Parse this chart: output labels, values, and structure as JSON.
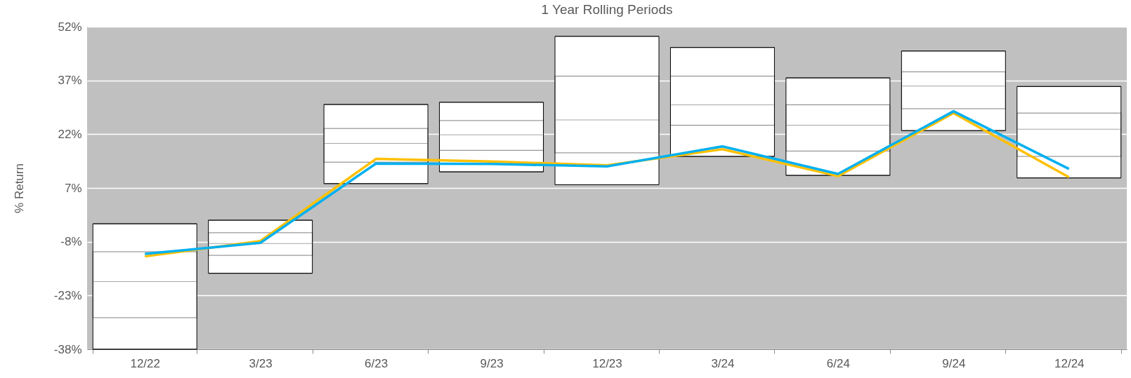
{
  "chart_data": {
    "type": "box",
    "title": "1 Year Rolling Periods",
    "ylabel": "% Return",
    "categories": [
      "12/22",
      "3/23",
      "6/23",
      "9/23",
      "12/23",
      "3/24",
      "6/24",
      "9/24",
      "12/24"
    ],
    "boxes": [
      {
        "low": -38,
        "q1": -29.2,
        "median": -19.1,
        "q3": -10.8,
        "high": -3
      },
      {
        "low": -16.8,
        "q1": -11.8,
        "median": -8.5,
        "q3": -5.5,
        "high": -2
      },
      {
        "low": 8.2,
        "q1": 14.2,
        "median": 19.4,
        "q3": 23.6,
        "high": 30.3
      },
      {
        "low": 11.5,
        "q1": 17.5,
        "median": 21.8,
        "q3": 25.8,
        "high": 30.9
      },
      {
        "low": 7.9,
        "q1": 16.8,
        "median": 26,
        "q3": 38.2,
        "high": 49.3
      },
      {
        "low": 15.8,
        "q1": 24.5,
        "median": 30.2,
        "q3": 38.2,
        "high": 46.2
      },
      {
        "low": 10.5,
        "q1": 17.3,
        "median": 24.5,
        "q3": 30.2,
        "high": 37.7
      },
      {
        "low": 23,
        "q1": 29.1,
        "median": 35.4,
        "q3": 39.4,
        "high": 45.2
      },
      {
        "low": 9.8,
        "q1": 15.8,
        "median": 23.4,
        "q3": 27.9,
        "high": 35.3
      }
    ],
    "series": [
      {
        "type": "line",
        "color": "#ffc000",
        "values": [
          -12.1,
          -7.8,
          15.1,
          14.4,
          13.3,
          17.8,
          10.3,
          27.9,
          10
        ]
      },
      {
        "type": "line",
        "color": "#00b0f0",
        "values": [
          -11.4,
          -8.3,
          13.8,
          13.7,
          13,
          18.6,
          10.9,
          28.4,
          12.3
        ]
      }
    ],
    "ylim": [
      -38,
      52
    ],
    "yticks": [
      {
        "value": -38,
        "label": "-38%"
      },
      {
        "value": -23,
        "label": "-23%"
      },
      {
        "value": -8,
        "label": "-8%"
      },
      {
        "value": 7,
        "label": "7%"
      },
      {
        "value": 22,
        "label": "22%"
      },
      {
        "value": 37,
        "label": "37%"
      },
      {
        "value": 52,
        "label": "52%"
      }
    ],
    "grid": "y"
  }
}
